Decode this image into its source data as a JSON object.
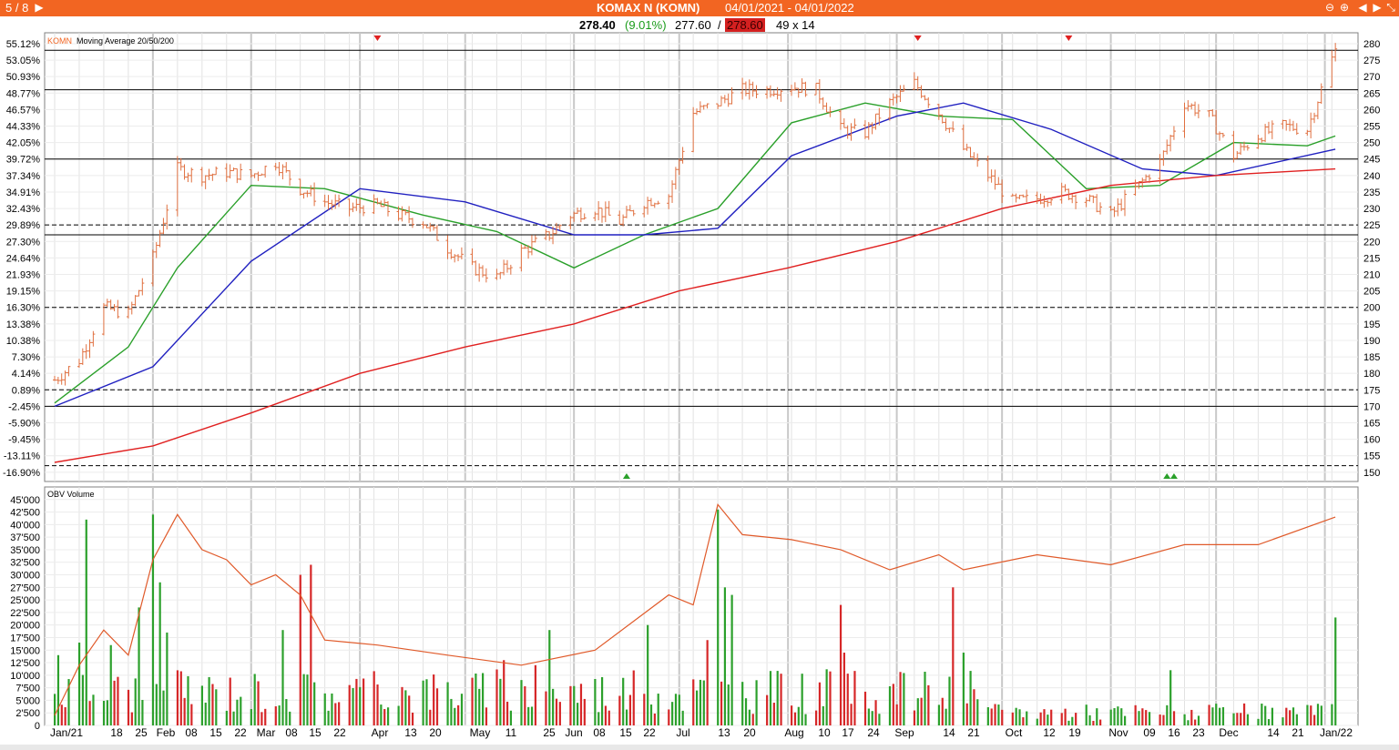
{
  "window": {
    "nav_counter": "5 / 8",
    "symbol_title": "KOMAX N (KOMN)",
    "date_range": "04/01/2021 - 04/01/2022"
  },
  "quote": {
    "last": "278.40",
    "change_pct": "(9.01%)",
    "bid": "277.60",
    "separator": "/",
    "ask": "278.60",
    "size": "49 x 14"
  },
  "colors": {
    "titlebar": "#f26522",
    "up_bar": "#2ca02c",
    "down_bar": "#d62728",
    "ohlc": "#e07040",
    "ma20": "#2aa02a",
    "ma50": "#2020c0",
    "ma200": "#e02020",
    "obv": "#e05a2a"
  },
  "price_panel": {
    "legend_symbol": "KOMN",
    "legend_text": "Moving Average 20/50/200",
    "right_ticks": [
      "280",
      "275",
      "270",
      "265",
      "260",
      "255",
      "250",
      "245",
      "240",
      "235",
      "230",
      "225",
      "220",
      "215",
      "210",
      "205",
      "200",
      "195",
      "190",
      "185",
      "180",
      "175",
      "170",
      "165",
      "160",
      "155",
      "150"
    ],
    "left_ticks": [
      "55.12%",
      "53.05%",
      "50.93%",
      "48.77%",
      "46.57%",
      "44.33%",
      "42.05%",
      "39.72%",
      "37.34%",
      "34.91%",
      "32.43%",
      "29.89%",
      "27.30%",
      "24.64%",
      "21.93%",
      "19.15%",
      "16.30%",
      "13.38%",
      "10.38%",
      "7.30%",
      "4.14%",
      "0.89%",
      "-2.45%",
      "-5.90%",
      "-9.45%",
      "-13.11%",
      "-16.90%"
    ]
  },
  "volume_panel": {
    "legend_text": "OBV Volume",
    "ticks": [
      "45'000",
      "42'500",
      "40'000",
      "37'500",
      "35'000",
      "32'500",
      "30'000",
      "27'500",
      "25'000",
      "22'500",
      "20'000",
      "17'500",
      "15'000",
      "12'500",
      "10'000",
      "7'500",
      "5'000",
      "2'500",
      "0"
    ]
  },
  "x_axis": {
    "labels": [
      "Jan/21",
      "18",
      "25",
      "Feb",
      "08",
      "15",
      "22",
      "Mar",
      "08",
      "15",
      "22",
      "Apr",
      "13",
      "20",
      "May",
      "11",
      "25",
      "Jun",
      "08",
      "15",
      "22",
      "Jul",
      "13",
      "20",
      "Aug",
      "10",
      "17",
      "24",
      "Sep",
      "14",
      "21",
      "Oct",
      "12",
      "19",
      "Nov",
      "09",
      "16",
      "23",
      "Dec",
      "14",
      "21",
      "Jan/22"
    ]
  },
  "chart_data": [
    {
      "type": "line",
      "title": "KOMAX N (KOMN)",
      "subtitle": "Moving Average 20/50/200",
      "ylim": [
        145,
        283
      ],
      "x_range": [
        "2021-01-04",
        "2022-01-04"
      ],
      "price_close_approx": {
        "dates": [
          "2021-01-04",
          "2021-01-11",
          "2021-01-18",
          "2021-01-25",
          "2021-02-01",
          "2021-02-08",
          "2021-02-15",
          "2021-02-22",
          "2021-03-01",
          "2021-03-08",
          "2021-03-15",
          "2021-03-22",
          "2021-03-29",
          "2021-04-06",
          "2021-04-12",
          "2021-04-19",
          "2021-04-26",
          "2021-05-03",
          "2021-05-10",
          "2021-05-17",
          "2021-05-25",
          "2021-05-31",
          "2021-06-07",
          "2021-06-14",
          "2021-06-21",
          "2021-06-28",
          "2021-07-05",
          "2021-07-12",
          "2021-07-19",
          "2021-07-26",
          "2021-08-02",
          "2021-08-09",
          "2021-08-16",
          "2021-08-23",
          "2021-08-30",
          "2021-09-06",
          "2021-09-13",
          "2021-09-20",
          "2021-09-27",
          "2021-10-04",
          "2021-10-11",
          "2021-10-18",
          "2021-10-25",
          "2021-11-01",
          "2021-11-08",
          "2021-11-15",
          "2021-11-22",
          "2021-11-29",
          "2021-12-06",
          "2021-12-13",
          "2021-12-20",
          "2021-12-27",
          "2022-01-04"
        ],
        "values": [
          178,
          184,
          200,
          198,
          215,
          242,
          240,
          241,
          240,
          244,
          236,
          232,
          230,
          231,
          228,
          226,
          218,
          212,
          209,
          217,
          222,
          228,
          230,
          226,
          232,
          234,
          259,
          262,
          266,
          266,
          267,
          266,
          254,
          253,
          262,
          268,
          259,
          248,
          240,
          232,
          233,
          235,
          233,
          228,
          236,
          244,
          262,
          258,
          246,
          252,
          255,
          254,
          278.4
        ]
      },
      "series": [
        {
          "name": "20",
          "color": "#2aa02a",
          "x": [
            "2021-01-04",
            "2021-01-25",
            "2021-02-08",
            "2021-03-01",
            "2021-03-22",
            "2021-04-19",
            "2021-05-10",
            "2021-06-01",
            "2021-06-21",
            "2021-07-12",
            "2021-08-02",
            "2021-08-23",
            "2021-09-13",
            "2021-10-04",
            "2021-10-25",
            "2021-11-15",
            "2021-12-06",
            "2021-12-27",
            "2022-01-04"
          ],
          "values": [
            171,
            188,
            212,
            237,
            236,
            228,
            223,
            212,
            222,
            230,
            256,
            262,
            258,
            257,
            236,
            237,
            250,
            249,
            252
          ]
        },
        {
          "name": "50",
          "color": "#2020c0",
          "x": [
            "2021-01-04",
            "2021-02-01",
            "2021-03-01",
            "2021-04-01",
            "2021-05-01",
            "2021-06-01",
            "2021-06-21",
            "2021-07-12",
            "2021-08-02",
            "2021-09-01",
            "2021-09-20",
            "2021-10-15",
            "2021-11-10",
            "2021-12-01",
            "2022-01-04"
          ],
          "values": [
            170,
            182,
            214,
            236,
            232,
            222,
            222,
            224,
            246,
            258,
            262,
            254,
            242,
            240,
            248
          ]
        },
        {
          "name": "200",
          "color": "#e02020",
          "x": [
            "2021-01-04",
            "2021-02-01",
            "2021-03-01",
            "2021-04-01",
            "2021-05-01",
            "2021-06-01",
            "2021-07-01",
            "2021-08-01",
            "2021-09-01",
            "2021-10-01",
            "2021-11-01",
            "2021-12-01",
            "2022-01-04"
          ],
          "values": [
            153,
            158,
            168,
            180,
            188,
            195,
            205,
            212,
            220,
            230,
            237,
            240,
            242
          ]
        }
      ],
      "horizontal_lines_solid": [
        278,
        266,
        245,
        222,
        170
      ],
      "horizontal_lines_dashed": [
        225,
        200,
        175,
        152
      ],
      "sell_markers": [
        "2021-04-06",
        "2021-09-07",
        "2021-10-20"
      ],
      "buy_markers": [
        "2021-06-16",
        "2021-11-17",
        "2021-11-19"
      ]
    },
    {
      "type": "bar",
      "title": "OBV Volume",
      "ylim": [
        0,
        45000
      ],
      "volume": {
        "dates": [
          "2021-01-05",
          "2021-01-11",
          "2021-01-13",
          "2021-01-20",
          "2021-01-28",
          "2021-02-01",
          "2021-02-03",
          "2021-02-05",
          "2021-03-10",
          "2021-03-15",
          "2021-03-18",
          "2021-04-14",
          "2021-05-12",
          "2021-05-21",
          "2021-05-25",
          "2021-06-22",
          "2021-07-09",
          "2021-07-12",
          "2021-07-14",
          "2021-07-16",
          "2021-08-16",
          "2021-08-17",
          "2021-09-10",
          "2021-09-17",
          "2021-09-20",
          "2021-11-18",
          "2022-01-04"
        ],
        "values": [
          14000,
          16500,
          41000,
          16000,
          23500,
          42000,
          28500,
          18500,
          19000,
          30000,
          32000,
          7000,
          13000,
          12000,
          19000,
          20000,
          17000,
          43000,
          27500,
          26000,
          24000,
          14500,
          8000,
          27500,
          14500,
          11000,
          21500
        ],
        "up": [
          true,
          true,
          true,
          true,
          true,
          true,
          true,
          true,
          true,
          false,
          false,
          true,
          false,
          false,
          true,
          true,
          false,
          true,
          true,
          true,
          false,
          false,
          false,
          false,
          true,
          true,
          true
        ]
      },
      "obv_line": {
        "dates": [
          "2021-01-04",
          "2021-01-11",
          "2021-01-18",
          "2021-01-25",
          "2021-02-01",
          "2021-02-08",
          "2021-02-15",
          "2021-02-22",
          "2021-03-01",
          "2021-03-08",
          "2021-03-15",
          "2021-03-22",
          "2021-04-06",
          "2021-04-26",
          "2021-05-17",
          "2021-06-07",
          "2021-06-28",
          "2021-07-05",
          "2021-07-12",
          "2021-07-19",
          "2021-08-02",
          "2021-08-16",
          "2021-08-30",
          "2021-09-13",
          "2021-09-20",
          "2021-10-11",
          "2021-11-01",
          "2021-11-22",
          "2021-12-13",
          "2022-01-04"
        ],
        "values": [
          2000,
          12000,
          19000,
          14000,
          33000,
          42000,
          35000,
          33000,
          28000,
          30000,
          26000,
          17000,
          16000,
          14000,
          12000,
          15000,
          26000,
          24000,
          44000,
          38000,
          37000,
          35000,
          31000,
          34000,
          31000,
          34000,
          32000,
          36000,
          36000,
          41500
        ]
      }
    }
  ]
}
